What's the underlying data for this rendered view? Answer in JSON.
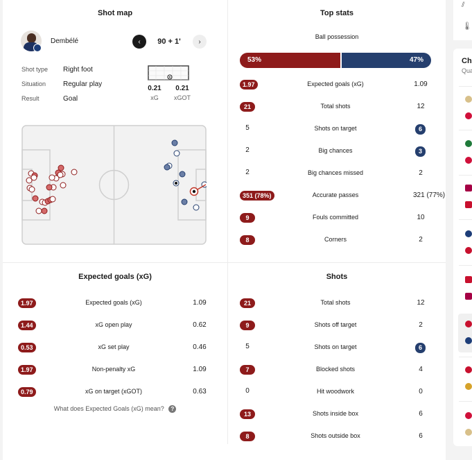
{
  "shot_map": {
    "title": "Shot map",
    "player": "Dembélé",
    "time": "90 + 1'",
    "details": [
      {
        "label": "Shot type",
        "value": "Right foot"
      },
      {
        "label": "Situation",
        "value": "Regular play"
      },
      {
        "label": "Result",
        "value": "Goal"
      }
    ],
    "xg_value": "0.21",
    "xgot_value": "0.21",
    "xg_label": "xG",
    "xgot_label": "xGOT"
  },
  "top_stats": {
    "title": "Top stats",
    "possession_label": "Ball possession",
    "possession_home": "53%",
    "possession_away": "47%",
    "possession_home_fraction": 0.53,
    "rows": [
      {
        "home": "1.97",
        "label": "Expected goals (xG)",
        "away": "1.09",
        "hi": "home"
      },
      {
        "home": "21",
        "label": "Total shots",
        "away": "12",
        "hi": "home"
      },
      {
        "home": "5",
        "label": "Shots on target",
        "away": "6",
        "hi": "away"
      },
      {
        "home": "2",
        "label": "Big chances",
        "away": "3",
        "hi": "away"
      },
      {
        "home": "2",
        "label": "Big chances missed",
        "away": "2",
        "hi": "none"
      },
      {
        "home": "351 (78%)",
        "label": "Accurate passes",
        "away": "321 (77%)",
        "hi": "home"
      },
      {
        "home": "9",
        "label": "Fouls committed",
        "away": "10",
        "hi": "home"
      },
      {
        "home": "8",
        "label": "Corners",
        "away": "2",
        "hi": "home"
      }
    ]
  },
  "xg": {
    "title": "Expected goals (xG)",
    "rows": [
      {
        "home": "1.97",
        "label": "Expected goals (xG)",
        "away": "1.09",
        "hi": "home"
      },
      {
        "home": "1.44",
        "label": "xG open play",
        "away": "0.62",
        "hi": "home"
      },
      {
        "home": "0.53",
        "label": "xG set play",
        "away": "0.46",
        "hi": "home"
      },
      {
        "home": "1.97",
        "label": "Non-penalty xG",
        "away": "1.09",
        "hi": "home"
      },
      {
        "home": "0.79",
        "label": "xG on target (xGOT)",
        "away": "0.63",
        "hi": "home"
      }
    ],
    "help_text": "What does Expected Goals (xG) mean?"
  },
  "shots": {
    "title": "Shots",
    "rows": [
      {
        "home": "21",
        "label": "Total shots",
        "away": "12",
        "hi": "home"
      },
      {
        "home": "9",
        "label": "Shots off target",
        "away": "2",
        "hi": "home"
      },
      {
        "home": "5",
        "label": "Shots on target",
        "away": "6",
        "hi": "away"
      },
      {
        "home": "7",
        "label": "Blocked shots",
        "away": "4",
        "hi": "home"
      },
      {
        "home": "0",
        "label": "Hit woodwork",
        "away": "0",
        "hi": "none"
      },
      {
        "home": "13",
        "label": "Shots inside box",
        "away": "6",
        "hi": "home"
      },
      {
        "home": "8",
        "label": "Shots outside box",
        "away": "6",
        "hi": "home"
      }
    ]
  },
  "side_panel": {
    "title_fragment": "Ch",
    "subtitle_fragment": "Qua"
  },
  "colors": {
    "home": "#8e1b1b",
    "away": "#253f6e"
  }
}
